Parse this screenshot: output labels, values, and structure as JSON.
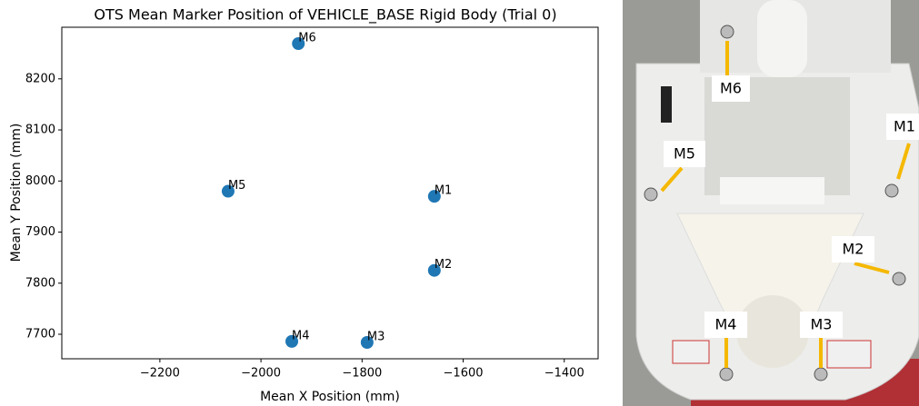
{
  "chart_data": {
    "type": "scatter",
    "title": "OTS Mean Marker Position of VEHICLE_BASE Rigid Body (Trial 0)",
    "x_label": "Mean X Position (mm)",
    "y_label": "Mean Y Position (mm)",
    "labels": [
      "M1",
      "M2",
      "M3",
      "M4",
      "M5",
      "M6"
    ],
    "x": [
      -1657,
      -1657,
      -1790,
      -1939,
      -2065,
      -1926
    ],
    "values": [
      7970,
      7825,
      7684,
      7686,
      7980,
      8269
    ],
    "color": "#1f77b4",
    "xlim": [
      -2394,
      -1333
    ],
    "ylim": [
      7652,
      8301
    ],
    "xticks": [
      {
        "value": -2200,
        "label": "−2200"
      },
      {
        "value": -2000,
        "label": "−2000"
      },
      {
        "value": -1800,
        "label": "−1800"
      },
      {
        "value": -1600,
        "label": "−1600"
      },
      {
        "value": -1400,
        "label": "−1400"
      }
    ],
    "yticks": [
      7700,
      7800,
      7900,
      8000,
      8100,
      8200
    ]
  },
  "photo": {
    "labels": [
      "M1",
      "M2",
      "M3",
      "M4",
      "M5",
      "M6"
    ]
  }
}
